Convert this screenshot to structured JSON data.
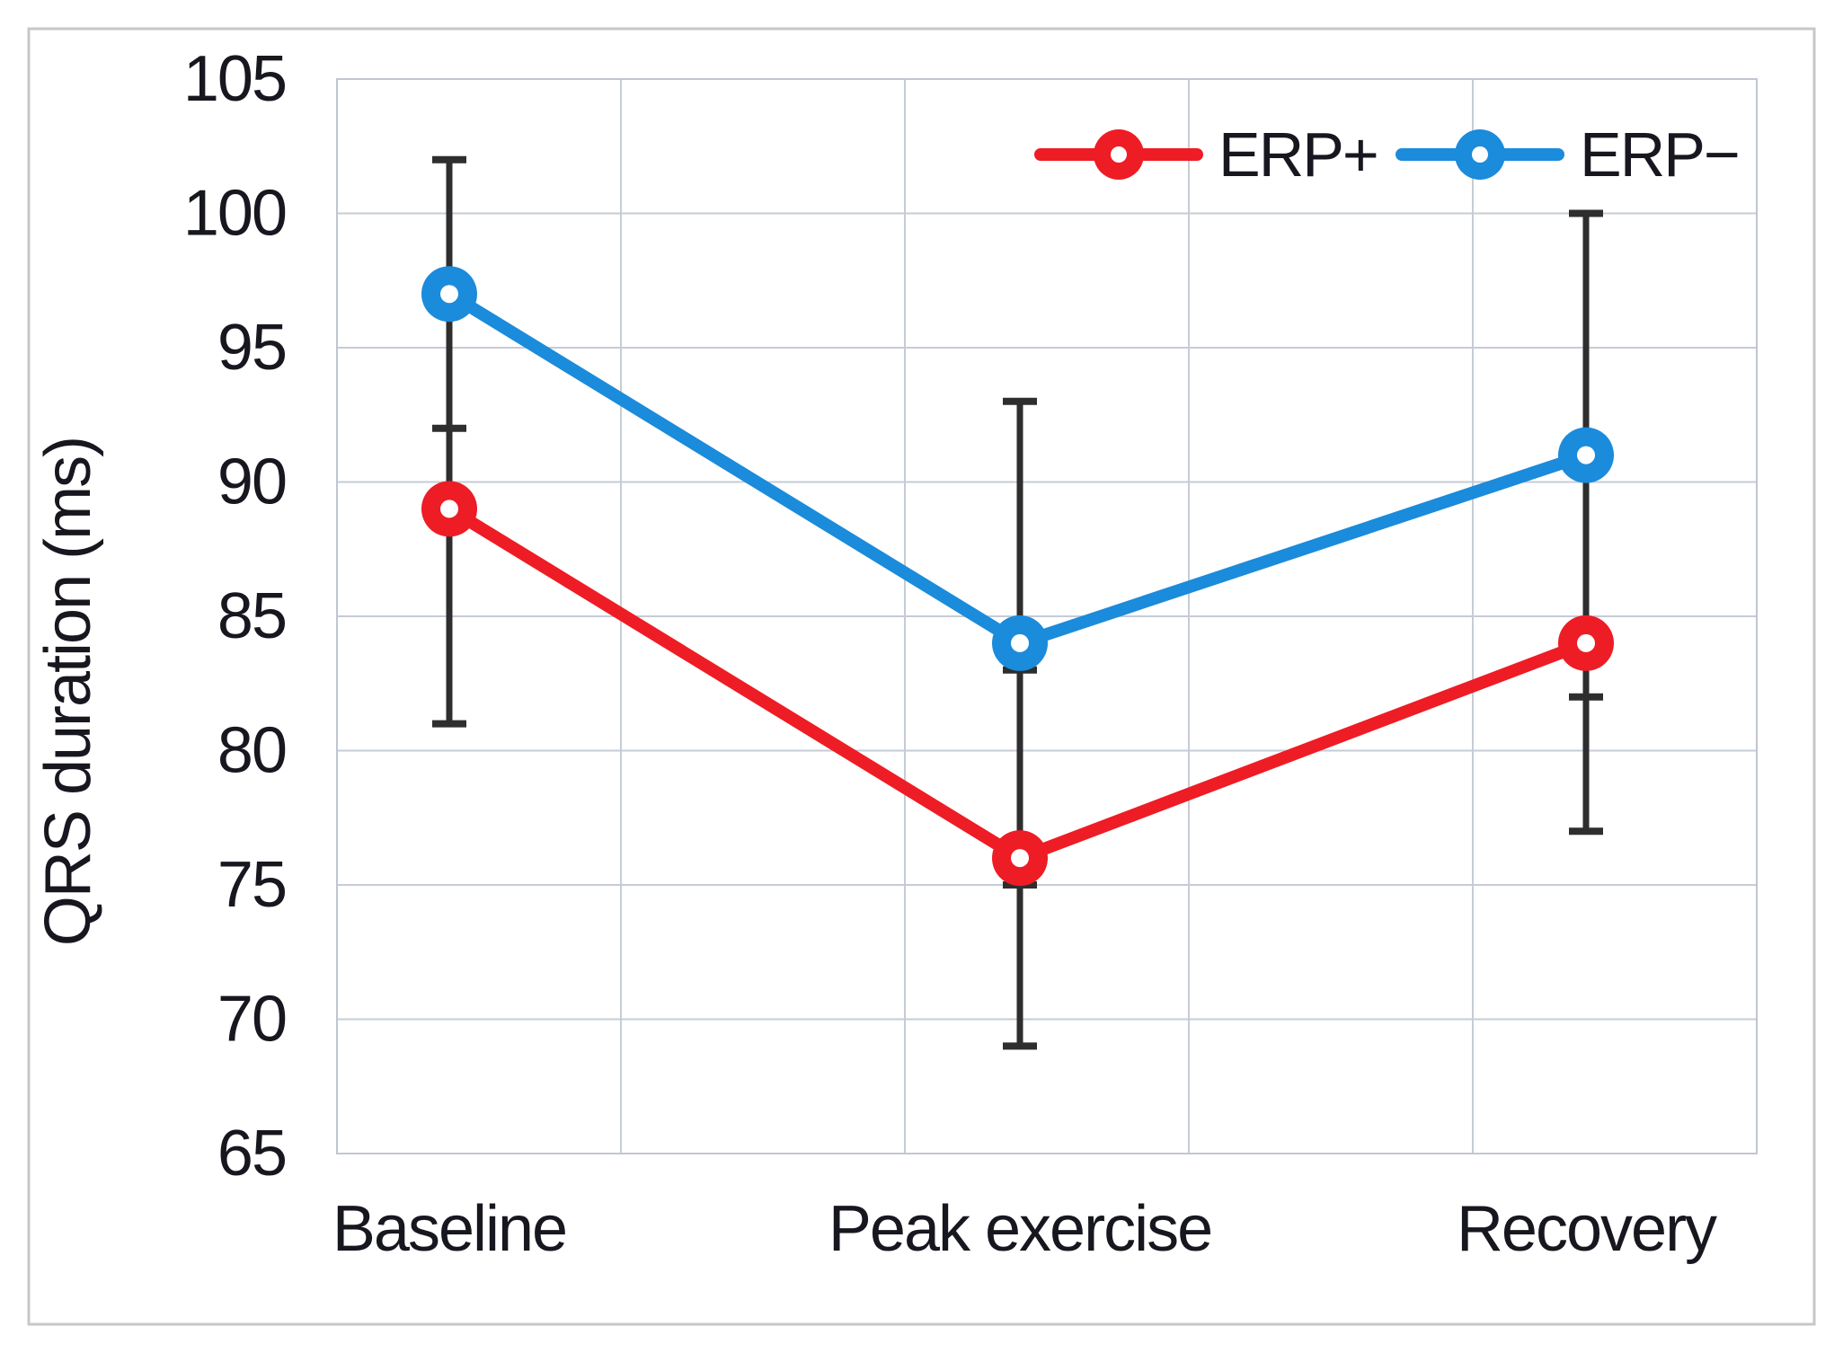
{
  "figure": {
    "background": "#ffffff",
    "outer_border_color": "#c7c7c7"
  },
  "chart_data": {
    "type": "line",
    "title": "",
    "xlabel": "",
    "ylabel": "QRS duration (ms)",
    "categories": [
      "Baseline",
      "Peak exercise",
      "Recovery"
    ],
    "series": [
      {
        "name": "ERP+",
        "color": "#ee1c25",
        "values": [
          89,
          76,
          84
        ],
        "error_low": [
          81,
          69,
          77
        ],
        "error_high": [
          97,
          83,
          91
        ]
      },
      {
        "name": "ERP−",
        "color": "#1b8bdb",
        "values": [
          97,
          84,
          91
        ],
        "error_low": [
          92,
          75,
          82
        ],
        "error_high": [
          102,
          93,
          100
        ]
      }
    ],
    "ylim": [
      65,
      105
    ],
    "yticks": [
      65,
      70,
      75,
      80,
      85,
      90,
      95,
      100,
      105
    ],
    "grid": true,
    "legend_position": "top-right-inside",
    "colors": {
      "gridline": "#c6ccd6",
      "plot_border": "#c0c6d0",
      "error_bar": "#2e2e2e",
      "text": "#17171f"
    },
    "marker_style": "circle-with-white-hole"
  }
}
